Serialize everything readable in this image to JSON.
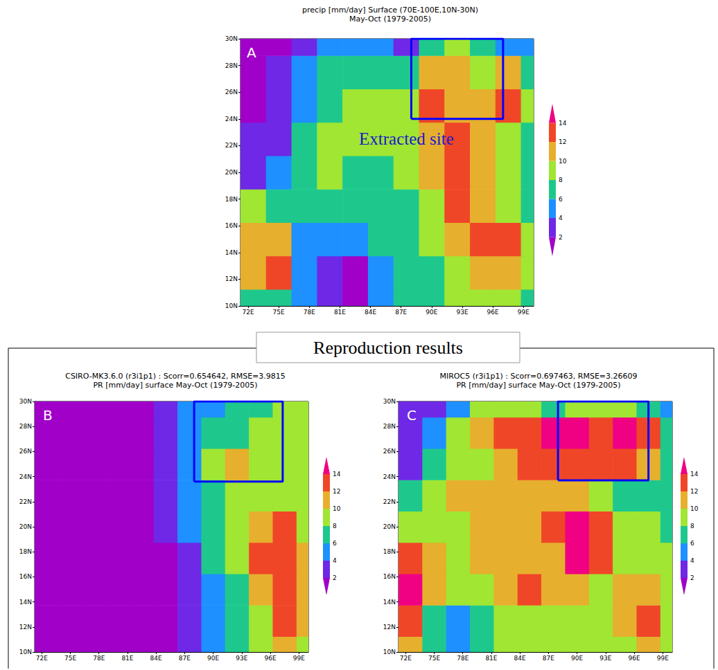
{
  "group_label": "Reproduction results",
  "chart_data": [
    {
      "type": "heatmap",
      "label": "A",
      "title": "precip [mm/day] Surface (70E-100E,10N-30N)",
      "subtitle": "May-Oct (1979-2005)",
      "annotations": [
        "Extracted site"
      ],
      "x": [
        72.5,
        75,
        77.5,
        80,
        82.5,
        85,
        87.5,
        90,
        92.5,
        95,
        97.5,
        100
      ],
      "y": [
        10,
        12.5,
        15,
        17.5,
        20,
        22.5,
        25,
        27.5,
        30
      ],
      "values": [
        [
          7,
          7,
          4,
          3,
          1.5,
          4,
          6,
          6,
          8,
          8,
          8,
          7
        ],
        [
          11,
          13,
          4,
          3,
          1.5,
          5,
          6,
          7,
          9,
          10,
          10,
          8
        ],
        [
          10,
          10,
          5,
          5,
          5,
          6,
          6,
          8,
          10,
          13,
          12,
          8
        ],
        [
          8,
          7,
          6,
          7,
          6,
          6,
          7,
          8,
          12,
          11,
          9,
          7
        ],
        [
          3,
          5,
          7,
          8,
          7,
          7,
          8,
          10,
          13,
          11,
          9,
          7
        ],
        [
          2,
          3,
          6,
          8,
          8,
          8,
          9,
          10,
          12,
          10,
          9,
          7
        ],
        [
          1.5,
          2.5,
          5,
          7,
          8,
          8,
          9,
          12,
          11,
          11,
          13,
          8
        ],
        [
          1.5,
          2,
          4,
          6,
          7,
          7,
          7,
          11,
          11,
          9,
          10,
          7
        ],
        [
          1.5,
          1.5,
          3,
          5,
          5,
          4,
          2,
          6,
          8,
          7,
          5,
          4
        ]
      ],
      "xlim": [
        71.25,
        100
      ],
      "ylim": [
        10,
        30
      ],
      "xticks": [
        {
          "value": 72,
          "label": "72E"
        },
        {
          "value": 75,
          "label": "75E"
        },
        {
          "value": 78,
          "label": "78E"
        },
        {
          "value": 81,
          "label": "81E"
        },
        {
          "value": 84,
          "label": "84E"
        },
        {
          "value": 87,
          "label": "87E"
        },
        {
          "value": 90,
          "label": "90E"
        },
        {
          "value": 93,
          "label": "93E"
        },
        {
          "value": 96,
          "label": "96E"
        },
        {
          "value": 99,
          "label": "99E"
        }
      ],
      "yticks": [
        {
          "value": 10,
          "label": "10N"
        },
        {
          "value": 12,
          "label": "12N"
        },
        {
          "value": 14,
          "label": "14N"
        },
        {
          "value": 16,
          "label": "16N"
        },
        {
          "value": 18,
          "label": "18N"
        },
        {
          "value": 20,
          "label": "20N"
        },
        {
          "value": 22,
          "label": "22N"
        },
        {
          "value": 24,
          "label": "24N"
        },
        {
          "value": 26,
          "label": "26N"
        },
        {
          "value": 28,
          "label": "28N"
        },
        {
          "value": 30,
          "label": "30N"
        }
      ],
      "colorbar": {
        "levels": [
          2,
          4,
          6,
          8,
          10,
          12,
          14
        ],
        "colors": [
          "#a000c8",
          "#6e28e6",
          "#1e90ff",
          "#1ec88c",
          "#a0e632",
          "#e6af2d",
          "#f04628",
          "#f00082"
        ]
      },
      "site_box": {
        "lon": [
          88,
          97
        ],
        "lat": [
          24,
          30
        ],
        "color": "#0000ff"
      },
      "grid": false
    },
    {
      "type": "heatmap",
      "label": "B",
      "title": "CSIRO-MK3.6.0 (r3i1p1) : Scorr=0.654642, RMSE=3.9815",
      "subtitle": "PR [mm/day] surface May-Oct (1979-2005)",
      "x": [
        72.5,
        75,
        77.5,
        80,
        82.5,
        85,
        87.5,
        90,
        92.5,
        95,
        97.5,
        100
      ],
      "y": [
        10,
        12.5,
        15,
        17.5,
        20,
        22.5,
        25,
        27.5,
        30
      ],
      "values": [
        [
          1,
          1,
          1,
          1,
          1,
          1.5,
          3,
          5,
          7,
          9,
          11,
          9
        ],
        [
          1,
          1,
          1,
          1,
          1,
          1.5,
          3,
          5,
          7,
          9,
          13,
          10
        ],
        [
          1,
          1,
          1,
          1,
          1,
          1.5,
          3,
          5,
          7,
          10,
          12,
          10
        ],
        [
          1,
          1,
          1,
          1,
          1,
          1.5,
          3,
          6,
          8,
          12,
          13,
          10
        ],
        [
          1,
          1,
          1,
          1,
          1,
          2,
          4,
          6,
          9,
          11,
          12,
          9
        ],
        [
          1,
          1,
          1,
          1,
          1.5,
          2.5,
          4,
          7,
          8,
          8,
          8,
          8
        ],
        [
          1,
          1,
          1,
          1,
          1.5,
          3,
          5,
          8,
          10,
          9,
          8,
          8
        ],
        [
          1,
          1,
          1,
          1,
          1.5,
          3,
          5,
          6,
          7,
          8,
          9,
          8
        ],
        [
          1,
          1,
          1,
          1,
          1.5,
          2.5,
          4,
          5,
          6,
          7,
          8,
          8
        ]
      ],
      "xlim": [
        71.25,
        100
      ],
      "ylim": [
        10,
        30
      ],
      "xticks": [
        {
          "value": 72,
          "label": "72E"
        },
        {
          "value": 75,
          "label": "75E"
        },
        {
          "value": 78,
          "label": "78E"
        },
        {
          "value": 81,
          "label": "81E"
        },
        {
          "value": 84,
          "label": "84E"
        },
        {
          "value": 87,
          "label": "87E"
        },
        {
          "value": 90,
          "label": "90E"
        },
        {
          "value": 93,
          "label": "93E"
        },
        {
          "value": 96,
          "label": "96E"
        },
        {
          "value": 99,
          "label": "99E"
        }
      ],
      "yticks": [
        {
          "value": 10,
          "label": "10N"
        },
        {
          "value": 12,
          "label": "12N"
        },
        {
          "value": 14,
          "label": "14N"
        },
        {
          "value": 16,
          "label": "16N"
        },
        {
          "value": 18,
          "label": "18N"
        },
        {
          "value": 20,
          "label": "20N"
        },
        {
          "value": 22,
          "label": "22N"
        },
        {
          "value": 24,
          "label": "24N"
        },
        {
          "value": 26,
          "label": "26N"
        },
        {
          "value": 28,
          "label": "28N"
        },
        {
          "value": 30,
          "label": "30N"
        }
      ],
      "colorbar": {
        "levels": [
          2,
          4,
          6,
          8,
          10,
          12,
          14
        ],
        "colors": [
          "#a000c8",
          "#6e28e6",
          "#1e90ff",
          "#1ec88c",
          "#a0e632",
          "#e6af2d",
          "#f04628",
          "#f00082"
        ]
      },
      "site_box": {
        "lon": [
          88,
          97.3
        ],
        "lat": [
          23.6,
          30
        ],
        "color": "#0000ff"
      },
      "grid": false
    },
    {
      "type": "heatmap",
      "label": "C",
      "title": "MIROC5 (r3i1p1) : Scorr=0.697463, RMSE=3.26609",
      "subtitle": "PR [mm/day] surface May-Oct (1979-2005)",
      "x": [
        72.5,
        75,
        77.5,
        80,
        82.5,
        85,
        87.5,
        90,
        92.5,
        95,
        97.5,
        100
      ],
      "y": [
        10,
        12.5,
        15,
        17.5,
        20,
        22.5,
        25,
        27.5,
        30
      ],
      "values": [
        [
          10,
          7,
          4,
          7,
          8,
          8,
          8,
          8,
          9,
          9,
          10,
          8
        ],
        [
          13,
          7,
          5,
          7,
          9,
          9,
          9,
          8,
          9,
          10,
          12,
          9
        ],
        [
          14,
          10,
          8,
          9,
          10,
          12,
          10,
          10,
          9,
          10,
          11,
          9
        ],
        [
          12,
          10,
          9,
          10,
          10,
          10,
          11,
          14,
          13,
          9,
          9,
          8
        ],
        [
          9,
          9,
          9,
          10,
          10,
          10,
          13,
          15,
          12,
          8,
          8,
          7
        ],
        [
          6,
          8,
          10,
          11,
          10,
          10,
          10,
          11,
          9,
          6,
          7,
          7
        ],
        [
          3,
          7,
          9,
          9,
          10,
          12,
          13,
          13,
          12,
          12,
          11,
          6
        ],
        [
          2,
          4,
          8,
          11,
          13,
          13,
          14,
          14,
          13,
          14,
          12,
          7
        ],
        [
          2,
          2,
          4,
          8,
          9,
          8,
          7,
          8,
          9,
          9,
          7,
          5
        ]
      ],
      "xlim": [
        71.25,
        100
      ],
      "ylim": [
        10,
        30
      ],
      "xticks": [
        {
          "value": 72,
          "label": "72E"
        },
        {
          "value": 75,
          "label": "75E"
        },
        {
          "value": 78,
          "label": "78E"
        },
        {
          "value": 81,
          "label": "81E"
        },
        {
          "value": 84,
          "label": "84E"
        },
        {
          "value": 87,
          "label": "87E"
        },
        {
          "value": 90,
          "label": "90E"
        },
        {
          "value": 93,
          "label": "93E"
        },
        {
          "value": 96,
          "label": "96E"
        },
        {
          "value": 99,
          "label": "99E"
        }
      ],
      "yticks": [
        {
          "value": 10,
          "label": "10N"
        },
        {
          "value": 12,
          "label": "12N"
        },
        {
          "value": 14,
          "label": "14N"
        },
        {
          "value": 16,
          "label": "16N"
        },
        {
          "value": 18,
          "label": "18N"
        },
        {
          "value": 20,
          "label": "20N"
        },
        {
          "value": 22,
          "label": "22N"
        },
        {
          "value": 24,
          "label": "24N"
        },
        {
          "value": 26,
          "label": "26N"
        },
        {
          "value": 28,
          "label": "28N"
        },
        {
          "value": 30,
          "label": "30N"
        }
      ],
      "colorbar": {
        "levels": [
          2,
          4,
          6,
          8,
          10,
          12,
          14
        ],
        "colors": [
          "#a000c8",
          "#6e28e6",
          "#1e90ff",
          "#1ec88c",
          "#a0e632",
          "#e6af2d",
          "#f04628",
          "#f00082"
        ]
      },
      "site_box": {
        "lon": [
          88,
          97.5
        ],
        "lat": [
          23.7,
          30
        ],
        "color": "#0000ff"
      },
      "grid": false
    }
  ]
}
